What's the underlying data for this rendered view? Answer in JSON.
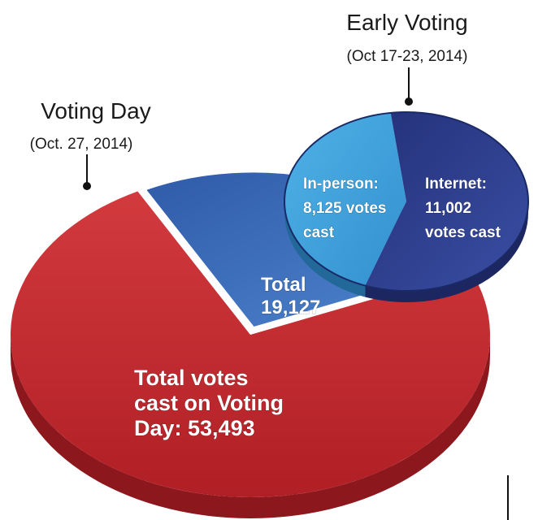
{
  "chart_data": [
    {
      "type": "pie",
      "title": "Voting Day",
      "subtitle": "(Oct. 27, 2014)",
      "slices": [
        {
          "label": "Total votes cast on Voting Day: 53,493",
          "value": 53493,
          "color": "#c0282d"
        },
        {
          "label": "Total 19,127",
          "value": 19127,
          "color": "#3a62b0"
        }
      ],
      "slice_labels": {
        "voting_day": [
          "Total votes",
          "cast on Voting",
          "Day: 53,493"
        ],
        "early_total": [
          "Total",
          "19,127"
        ]
      }
    },
    {
      "type": "pie",
      "title": "Early Voting",
      "subtitle": "(Oct 17-23, 2014)",
      "slices": [
        {
          "label": "In-person: 8,125 votes cast",
          "value": 8125,
          "color": "#3a9fd8"
        },
        {
          "label": "Internet: 11,002 votes cast",
          "value": 11002,
          "color": "#2e3f8f"
        }
      ],
      "slice_labels": {
        "in_person": [
          "In-person:",
          "8,125 votes",
          "cast"
        ],
        "internet": [
          "Internet:",
          "11,002",
          "votes cast"
        ]
      }
    }
  ]
}
